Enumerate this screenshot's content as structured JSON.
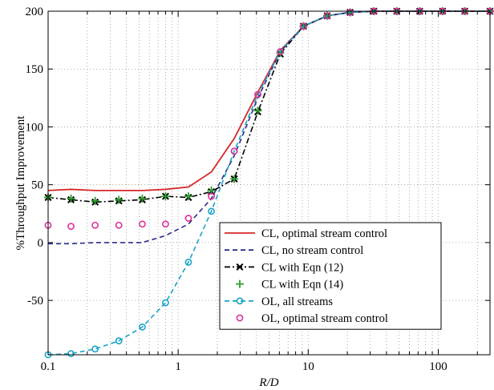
{
  "chart_data": {
    "type": "line",
    "xlabel": "R/D",
    "ylabel": "%Throughput Improvement",
    "xscale": "log",
    "xlim": [
      0.1,
      250
    ],
    "ylim": [
      -97,
      200
    ],
    "x_ticks": [
      0.1,
      1,
      10,
      100
    ],
    "x_tick_labels": [
      "0.1",
      "1",
      "10",
      "100"
    ],
    "y_ticks": [
      -50,
      0,
      50,
      100,
      150,
      200
    ],
    "y_tick_labels": [
      "-50",
      "0",
      "50",
      "100",
      "150",
      "200"
    ],
    "grid": true,
    "legend_position": "lower-right",
    "x": [
      0.1,
      0.15,
      0.23,
      0.35,
      0.53,
      0.8,
      1.2,
      1.8,
      2.7,
      4.1,
      6.1,
      9.2,
      14,
      21,
      32,
      48,
      72,
      108,
      160,
      250
    ],
    "series": [
      {
        "name": "CL, optimal stream control",
        "color": "#d62728",
        "line": "solid",
        "marker": "none",
        "values": [
          45,
          46,
          45,
          45,
          45,
          46,
          48,
          61,
          90,
          130,
          166,
          187,
          196,
          199,
          200,
          200,
          200,
          200,
          200,
          200
        ]
      },
      {
        "name": "CL, no stream control",
        "color": "#2b2b8c",
        "line": "dashed",
        "marker": "none",
        "values": [
          -1,
          -1,
          0,
          0,
          0,
          6,
          16,
          38,
          75,
          125,
          165,
          187,
          196,
          199,
          200,
          200,
          200,
          200,
          200,
          200
        ]
      },
      {
        "name": "CL with Eqn (12)",
        "color": "#000000",
        "line": "dashdot",
        "marker": "x",
        "values": [
          39,
          37,
          35,
          36,
          37,
          40,
          39,
          44,
          55,
          113,
          163,
          187,
          196,
          199,
          200,
          200,
          200,
          200,
          200,
          200
        ]
      },
      {
        "name": "CL with Eqn (14)",
        "color": "#2ca02c",
        "line": "none",
        "marker": "+",
        "values": [
          39,
          38,
          36,
          37,
          38,
          40,
          40,
          45,
          55,
          114,
          164,
          187,
          196,
          199,
          200,
          200,
          200,
          200,
          200,
          200
        ]
      },
      {
        "name": "OL, all streams",
        "color": "#1aa3c8",
        "line": "dashed",
        "marker": "o",
        "values": [
          -97,
          -96,
          -92,
          -85,
          -73,
          -52,
          -17,
          27,
          79,
          128,
          165,
          187,
          196,
          199,
          200,
          200,
          200,
          200,
          200,
          200
        ]
      },
      {
        "name": "OL, optimal stream control",
        "color": "#e0309a",
        "line": "none",
        "marker": "o",
        "values": [
          15,
          14,
          15,
          15,
          16,
          16,
          21,
          40,
          79,
          128,
          165,
          187,
          196,
          199,
          200,
          200,
          200,
          200,
          200,
          200
        ]
      }
    ]
  }
}
